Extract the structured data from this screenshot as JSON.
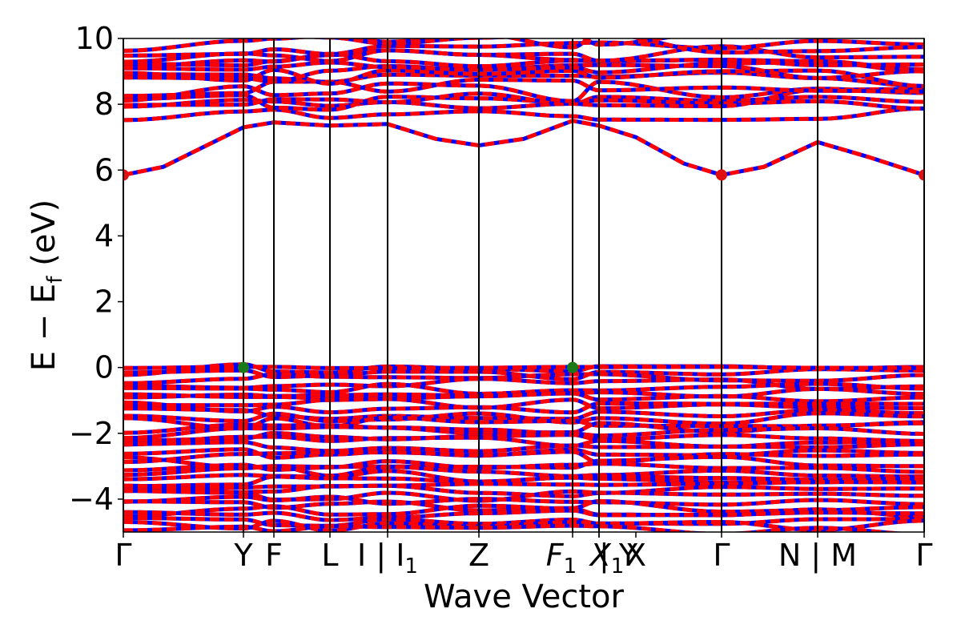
{
  "chart_data": {
    "type": "line",
    "xlabel": "Wave Vector",
    "ylabel": "E − E",
    "ylabel_sub": "f",
    "ylabel_unit": " (eV)",
    "ylim": [
      -5,
      10
    ],
    "yticks": [
      -4,
      -2,
      0,
      2,
      4,
      6,
      8,
      10
    ],
    "ytick_labels": [
      "−4",
      "−2",
      "0",
      "2",
      "4",
      "6",
      "8",
      "10"
    ],
    "xlim": [
      0,
      1
    ],
    "grid": false,
    "kpath": [
      {
        "x": 0.0,
        "label": "Γ"
      },
      {
        "x": 0.15,
        "label": "Y"
      },
      {
        "x": 0.188,
        "label": "F"
      },
      {
        "x": 0.258,
        "label": "L"
      },
      {
        "x": 0.33,
        "label": "I | I",
        "label_sub": "1"
      },
      {
        "x": 0.444,
        "label": "Z"
      },
      {
        "x": 0.561,
        "label": "F",
        "label_sub": "1"
      },
      {
        "x": 0.594,
        "label": "X",
        "label_sub": "1"
      },
      {
        "x": 0.594,
        "label": "| Y"
      },
      {
        "x": 0.64,
        "label": "X"
      },
      {
        "x": 0.747,
        "label": "Γ"
      },
      {
        "x": 0.867,
        "label": "N | M"
      },
      {
        "x": 1.0,
        "label": "Γ"
      }
    ],
    "vlines": [
      0.0,
      0.15,
      0.188,
      0.258,
      0.33,
      0.444,
      0.561,
      0.594,
      0.747,
      0.867,
      1.0
    ],
    "series": [
      {
        "style": "spin-up",
        "color": "#0000ff",
        "dashed": false
      },
      {
        "style": "spin-down",
        "color": "#ff0000",
        "dashed": true
      }
    ],
    "conduction_band_minimum": [
      {
        "x": 0.0,
        "y": 5.85
      },
      {
        "x": 0.747,
        "y": 5.85
      },
      {
        "x": 1.0,
        "y": 5.85
      }
    ],
    "valence_band_maximum": [
      {
        "x": 0.15,
        "y": 0.0
      },
      {
        "x": 0.561,
        "y": 0.0
      }
    ],
    "lowest_conduction_band": [
      {
        "x": 0.0,
        "y": 5.85
      },
      {
        "x": 0.05,
        "y": 6.1
      },
      {
        "x": 0.1,
        "y": 6.7
      },
      {
        "x": 0.15,
        "y": 7.3
      },
      {
        "x": 0.188,
        "y": 7.45
      },
      {
        "x": 0.258,
        "y": 7.35
      },
      {
        "x": 0.33,
        "y": 7.4
      },
      {
        "x": 0.39,
        "y": 6.95
      },
      {
        "x": 0.444,
        "y": 6.75
      },
      {
        "x": 0.5,
        "y": 6.95
      },
      {
        "x": 0.561,
        "y": 7.5
      },
      {
        "x": 0.594,
        "y": 7.35
      },
      {
        "x": 0.64,
        "y": 7.0
      },
      {
        "x": 0.7,
        "y": 6.2
      },
      {
        "x": 0.747,
        "y": 5.85
      },
      {
        "x": 0.8,
        "y": 6.1
      },
      {
        "x": 0.867,
        "y": 6.85
      },
      {
        "x": 0.93,
        "y": 6.4
      },
      {
        "x": 1.0,
        "y": 5.85
      }
    ],
    "colors": {
      "spin_up": "#0000ff",
      "spin_down": "#ff0000",
      "cbm_marker": "#e01010",
      "vbm_marker": "#1a7a1a",
      "frame": "#000000"
    }
  }
}
